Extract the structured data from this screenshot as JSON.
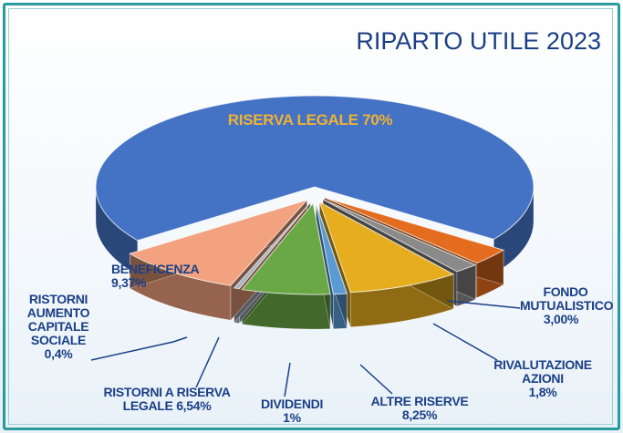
{
  "chart_data": {
    "type": "pie3d",
    "title": "RIPARTO UTILE 2023",
    "categories": [
      "RISERVA LEGALE",
      "FONDO MUTUALISTICO",
      "RIVALUTAZIONE AZIONI",
      "ALTRE RISERVE",
      "DIVIDENDI",
      "RISTORNI A RISERVA LEGALE",
      "RISTORNI AUMENTO CAPITALE SOCIALE",
      "BENEFICENZA"
    ],
    "values": [
      70,
      3.0,
      1.8,
      8.25,
      1,
      6.54,
      0.4,
      9.37
    ],
    "value_labels": [
      "70%",
      "3,00%",
      "1,8%",
      "8,25%",
      "1%",
      "6,54%",
      "0,4%",
      "9,37%"
    ],
    "colors": [
      "#4472c4",
      "#e36c1f",
      "#8a8a8a",
      "#e6ae1e",
      "#5b9bd5",
      "#6aa845",
      "#a9b4c2",
      "#f2a27e"
    ]
  }
}
